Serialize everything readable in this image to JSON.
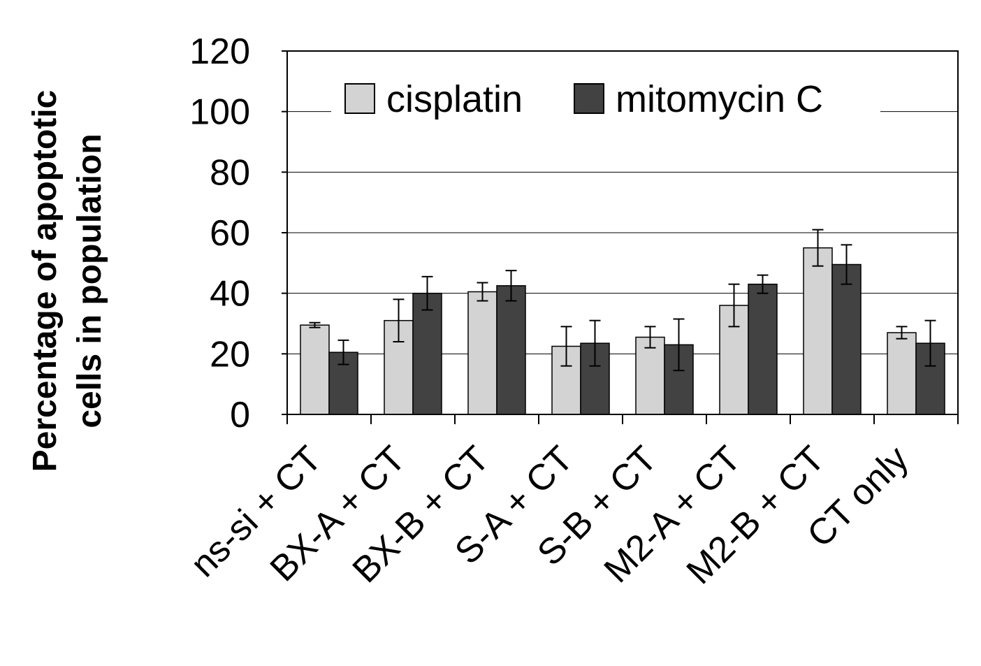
{
  "chart_data": {
    "type": "bar",
    "title": "",
    "xlabel": "",
    "ylabel_lines": [
      "Percentage of apoptotic",
      "cells in population"
    ],
    "ylim": [
      0,
      120
    ],
    "yticks": [
      0,
      20,
      40,
      60,
      80,
      100,
      120
    ],
    "grid": true,
    "legend_position": "top",
    "categories": [
      "ns-si + CT",
      "BX-A + CT",
      "BX-B + CT",
      "S-A + CT",
      "S-B + CT",
      "M2-A + CT",
      "M2-B + CT",
      "CT only"
    ],
    "series": [
      {
        "name": "cisplatin",
        "color": "#d3d3d3",
        "values": [
          29.5,
          31,
          40.5,
          22.5,
          25.5,
          36,
          55,
          27
        ],
        "errors": [
          0.8,
          7,
          3,
          6.5,
          3.5,
          7,
          6,
          2
        ]
      },
      {
        "name": "mitomycin C",
        "color": "#424242",
        "values": [
          20.5,
          40,
          42.5,
          23.5,
          23,
          43,
          49.5,
          23.5
        ],
        "errors": [
          4,
          5.5,
          5,
          7.5,
          8.5,
          3,
          6.5,
          7.5
        ]
      }
    ]
  }
}
